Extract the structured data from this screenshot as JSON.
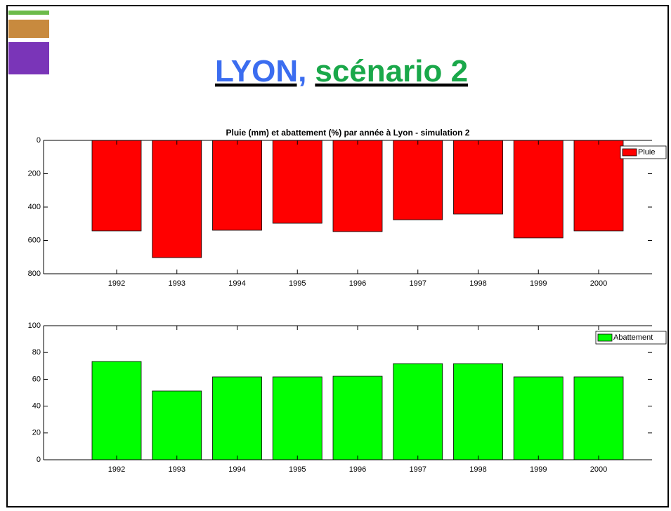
{
  "slide_title": {
    "parts": [
      "LYON,",
      "scénario 2"
    ]
  },
  "chart_data": [
    {
      "type": "bar",
      "title": "Pluie (mm) et abattement (%) par année à Lyon - simulation 2",
      "categories": [
        "1992",
        "1993",
        "1994",
        "1995",
        "1996",
        "1997",
        "1998",
        "1999",
        "2000"
      ],
      "series": [
        {
          "name": "Pluie",
          "color": "#ff0000",
          "values": [
            543,
            703,
            539,
            497,
            547,
            476,
            442,
            585,
            543
          ]
        }
      ],
      "ylim": [
        0,
        800
      ],
      "yticks": [
        0,
        200,
        400,
        600,
        800
      ],
      "y_reversed": true,
      "legend": "upper right"
    },
    {
      "type": "bar",
      "categories": [
        "1992",
        "1993",
        "1994",
        "1995",
        "1996",
        "1997",
        "1998",
        "1999",
        "2000"
      ],
      "series": [
        {
          "name": "Abattement",
          "color": "#00ff00",
          "values": [
            73.3,
            51.3,
            61.8,
            61.8,
            62.3,
            71.7,
            71.7,
            61.8,
            61.8
          ]
        }
      ],
      "ylim": [
        0,
        100
      ],
      "yticks": [
        0,
        20,
        40,
        60,
        80,
        100
      ],
      "legend": "upper right"
    }
  ]
}
